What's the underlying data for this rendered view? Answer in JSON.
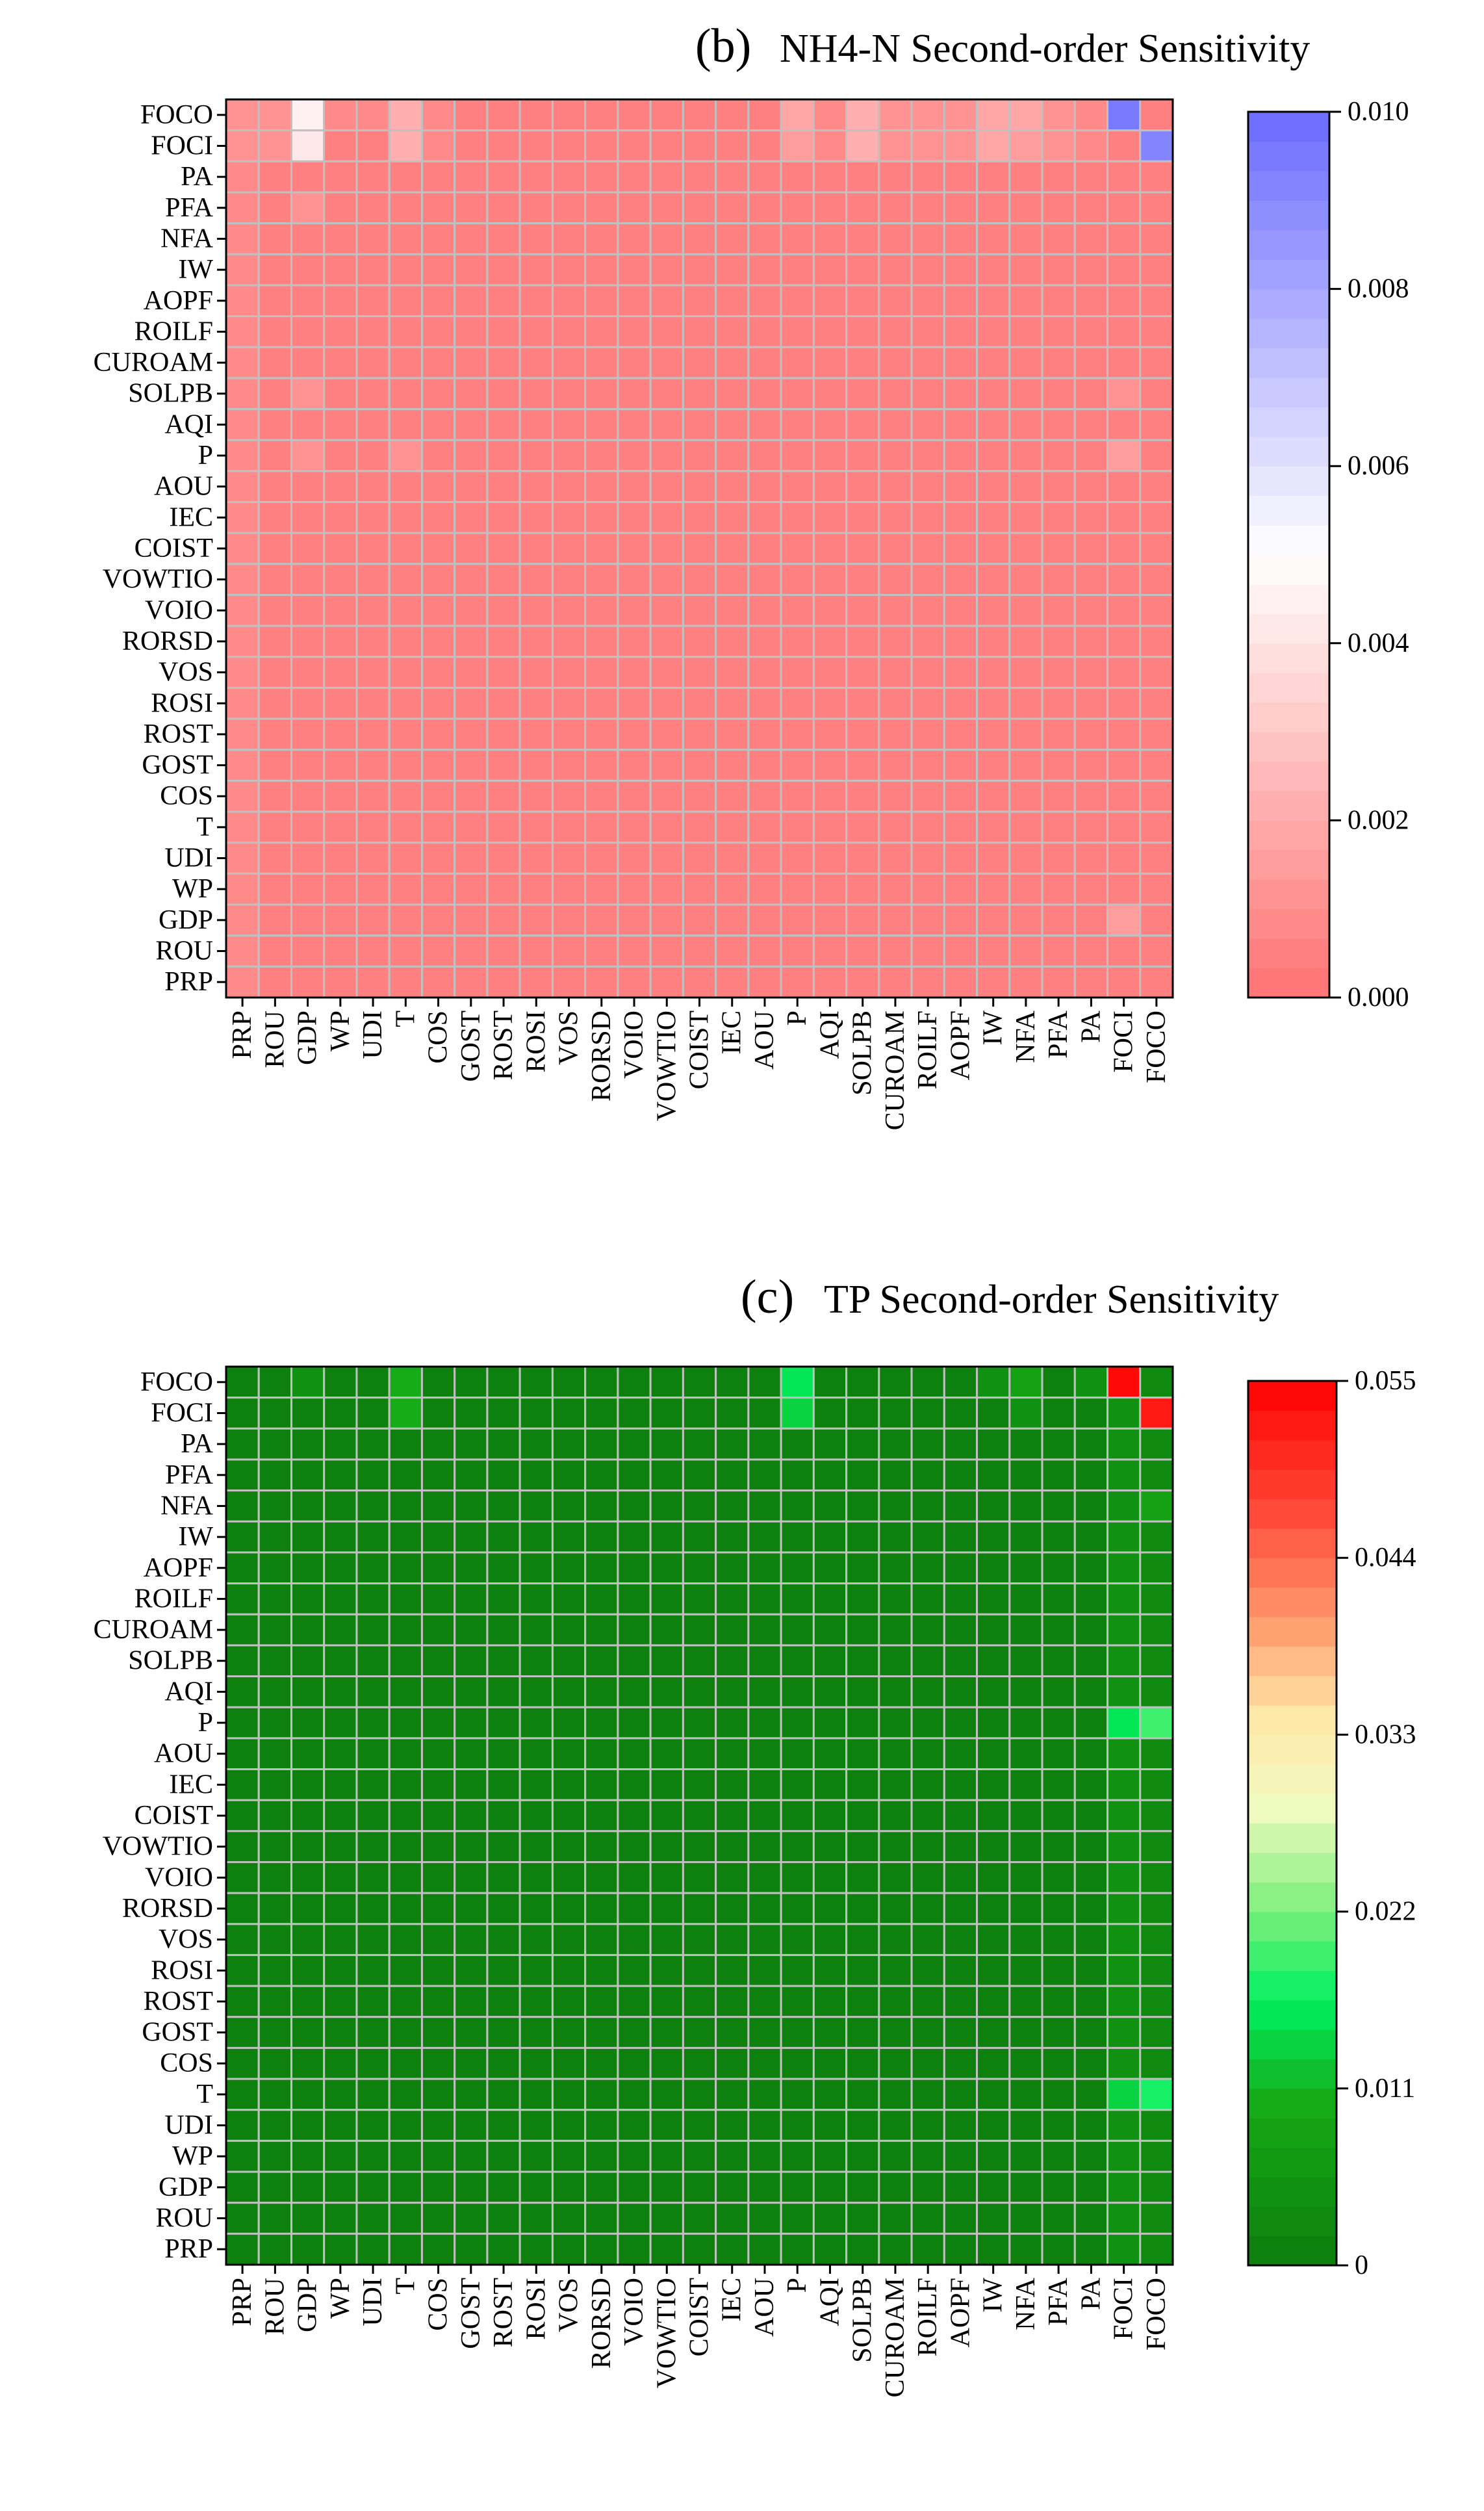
{
  "variables": [
    "PRP",
    "ROU",
    "GDP",
    "WP",
    "UDI",
    "T",
    "COS",
    "GOST",
    "ROST",
    "ROSI",
    "VOS",
    "RORSD",
    "VOIO",
    "VOWTIO",
    "COIST",
    "IEC",
    "AOU",
    "P",
    "AQI",
    "SOLPB",
    "CUROAM",
    "ROILF",
    "AOPF",
    "IW",
    "NFA",
    "PFA",
    "PA",
    "FOCI",
    "FOCO"
  ],
  "chart_data": [
    {
      "type": "heatmap",
      "panel_label": "(b)",
      "title": "NH4-N Second-order Sensitivity",
      "x_categories": [
        "PRP",
        "ROU",
        "GDP",
        "WP",
        "UDI",
        "T",
        "COS",
        "GOST",
        "ROST",
        "ROSI",
        "VOS",
        "RORSD",
        "VOIO",
        "VOWTIO",
        "COIST",
        "IEC",
        "AOU",
        "P",
        "AQI",
        "SOLPB",
        "CUROAM",
        "ROILF",
        "AOPF",
        "IW",
        "NFA",
        "PFA",
        "PA",
        "FOCI",
        "FOCO"
      ],
      "y_categories_top_to_bottom": [
        "FOCO",
        "FOCI",
        "PA",
        "PFA",
        "NFA",
        "IW",
        "AOPF",
        "ROILF",
        "CUROAM",
        "SOLPB",
        "AQI",
        "P",
        "AOU",
        "IEC",
        "COIST",
        "VOWTIO",
        "VOIO",
        "RORSD",
        "VOS",
        "ROSI",
        "ROST",
        "GOST",
        "COS",
        "T",
        "UDI",
        "WP",
        "GDP",
        "ROU",
        "PRP"
      ],
      "colorbar": {
        "min": 0.0,
        "max": 0.01,
        "ticks": [
          0.0,
          0.002,
          0.004,
          0.006,
          0.008,
          0.01
        ],
        "tick_labels": [
          "0.000",
          "0.002",
          "0.004",
          "0.006",
          "0.008",
          "0.010"
        ],
        "stops": [
          [
            0.0,
            "#ff7272"
          ],
          [
            0.5,
            "#ffffff"
          ],
          [
            1.0,
            "#6b6bff"
          ]
        ],
        "bands": 30
      },
      "base_value": 0.0005,
      "column_offsets": [
        [
          "PRP",
          0.0008
        ]
      ],
      "cells": [
        [
          "FOCO",
          "GDP",
          0.0044
        ],
        [
          "FOCO",
          "ROU",
          0.0012
        ],
        [
          "FOCO",
          "PRP",
          0.0012
        ],
        [
          "FOCO",
          "T",
          0.0022
        ],
        [
          "FOCO",
          "P",
          0.0018
        ],
        [
          "FOCO",
          "SOLPB",
          0.0022
        ],
        [
          "FOCO",
          "IW",
          0.0018
        ],
        [
          "FOCO",
          "NFA",
          0.0018
        ],
        [
          "FOCO",
          "PFA",
          0.0012
        ],
        [
          "FOCO",
          "FOCI",
          0.0096
        ],
        [
          "FOCO",
          "WP",
          0.0008
        ],
        [
          "FOCO",
          "UDI",
          0.0008
        ],
        [
          "FOCO",
          "COS",
          0.0008
        ],
        [
          "FOCO",
          "AQI",
          0.0008
        ],
        [
          "FOCO",
          "CUROAM",
          0.001
        ],
        [
          "FOCO",
          "ROILF",
          0.001
        ],
        [
          "FOCO",
          "AOPF",
          0.001
        ],
        [
          "FOCO",
          "PA",
          0.0008
        ],
        [
          "FOCI",
          "GDP",
          0.004
        ],
        [
          "FOCI",
          "ROU",
          0.0012
        ],
        [
          "FOCI",
          "PRP",
          0.0012
        ],
        [
          "FOCI",
          "T",
          0.002
        ],
        [
          "FOCI",
          "P",
          0.0016
        ],
        [
          "FOCI",
          "SOLPB",
          0.002
        ],
        [
          "FOCI",
          "IW",
          0.0018
        ],
        [
          "FOCI",
          "NFA",
          0.0016
        ],
        [
          "FOCI",
          "PFA",
          0.0012
        ],
        [
          "FOCI",
          "FOCO",
          0.0092
        ],
        [
          "FOCI",
          "COS",
          0.0008
        ],
        [
          "FOCI",
          "AQI",
          0.0008
        ],
        [
          "FOCI",
          "CUROAM",
          0.001
        ],
        [
          "FOCI",
          "ROILF",
          0.001
        ],
        [
          "FOCI",
          "AOPF",
          0.001
        ],
        [
          "FOCI",
          "PA",
          0.0008
        ],
        [
          "PFA",
          "GDP",
          0.001
        ],
        [
          "SOLPB",
          "GDP",
          0.001
        ],
        [
          "SOLPB",
          "FOCI",
          0.0012
        ],
        [
          "P",
          "GDP",
          0.0012
        ],
        [
          "P",
          "T",
          0.001
        ],
        [
          "P",
          "FOCI",
          0.0014
        ],
        [
          "GDP",
          "FOCI",
          0.0016
        ]
      ]
    },
    {
      "type": "heatmap",
      "panel_label": "(c)",
      "title": "TP Second-order Sensitivity",
      "x_categories": [
        "PRP",
        "ROU",
        "GDP",
        "WP",
        "UDI",
        "T",
        "COS",
        "GOST",
        "ROST",
        "ROSI",
        "VOS",
        "RORSD",
        "VOIO",
        "VOWTIO",
        "COIST",
        "IEC",
        "AOU",
        "P",
        "AQI",
        "SOLPB",
        "CUROAM",
        "ROILF",
        "AOPF",
        "IW",
        "NFA",
        "PFA",
        "PA",
        "FOCI",
        "FOCO"
      ],
      "y_categories_top_to_bottom": [
        "FOCO",
        "FOCI",
        "PA",
        "PFA",
        "NFA",
        "IW",
        "AOPF",
        "ROILF",
        "CUROAM",
        "SOLPB",
        "AQI",
        "P",
        "AOU",
        "IEC",
        "COIST",
        "VOWTIO",
        "VOIO",
        "RORSD",
        "VOS",
        "ROSI",
        "ROST",
        "GOST",
        "COS",
        "T",
        "UDI",
        "WP",
        "GDP",
        "ROU",
        "PRP"
      ],
      "colorbar": {
        "min": 0.0,
        "max": 0.055,
        "ticks": [
          0.0,
          0.011,
          0.022,
          0.033,
          0.044,
          0.055
        ],
        "tick_labels": [
          "0",
          "0.011",
          "0.022",
          "0.033",
          "0.044",
          "0.055"
        ],
        "stops": [
          [
            0.0,
            "#0c7c0c"
          ],
          [
            0.18,
            "#16aa16"
          ],
          [
            0.3,
            "#00f060"
          ],
          [
            0.4,
            "#7cf07c"
          ],
          [
            0.52,
            "#f2fac0"
          ],
          [
            0.62,
            "#ffe8a8"
          ],
          [
            0.72,
            "#ffa070"
          ],
          [
            0.85,
            "#ff4a3a"
          ],
          [
            1.0,
            "#ff0000"
          ]
        ],
        "bands": 30
      },
      "base_value": 0.001,
      "column_offsets": [
        [
          "FOCI",
          0.004
        ],
        [
          "FOCO",
          0.003
        ]
      ],
      "cells": [
        [
          "FOCO",
          "GDP",
          0.005
        ],
        [
          "FOCO",
          "T",
          0.01
        ],
        [
          "FOCO",
          "P",
          0.016
        ],
        [
          "FOCO",
          "NFA",
          0.008
        ],
        [
          "FOCO",
          "FOCI",
          0.054
        ],
        [
          "FOCO",
          "IW",
          0.004
        ],
        [
          "FOCO",
          "PA",
          0.004
        ],
        [
          "FOCI",
          "T",
          0.01
        ],
        [
          "FOCI",
          "P",
          0.014
        ],
        [
          "FOCI",
          "FOCO",
          0.052
        ],
        [
          "FOCI",
          "NFA",
          0.004
        ],
        [
          "P",
          "FOCI",
          0.016
        ],
        [
          "P",
          "FOCO",
          0.02
        ],
        [
          "T",
          "FOCI",
          0.013
        ],
        [
          "T",
          "FOCO",
          0.017
        ],
        [
          "NFA",
          "FOCO",
          0.008
        ]
      ]
    }
  ]
}
